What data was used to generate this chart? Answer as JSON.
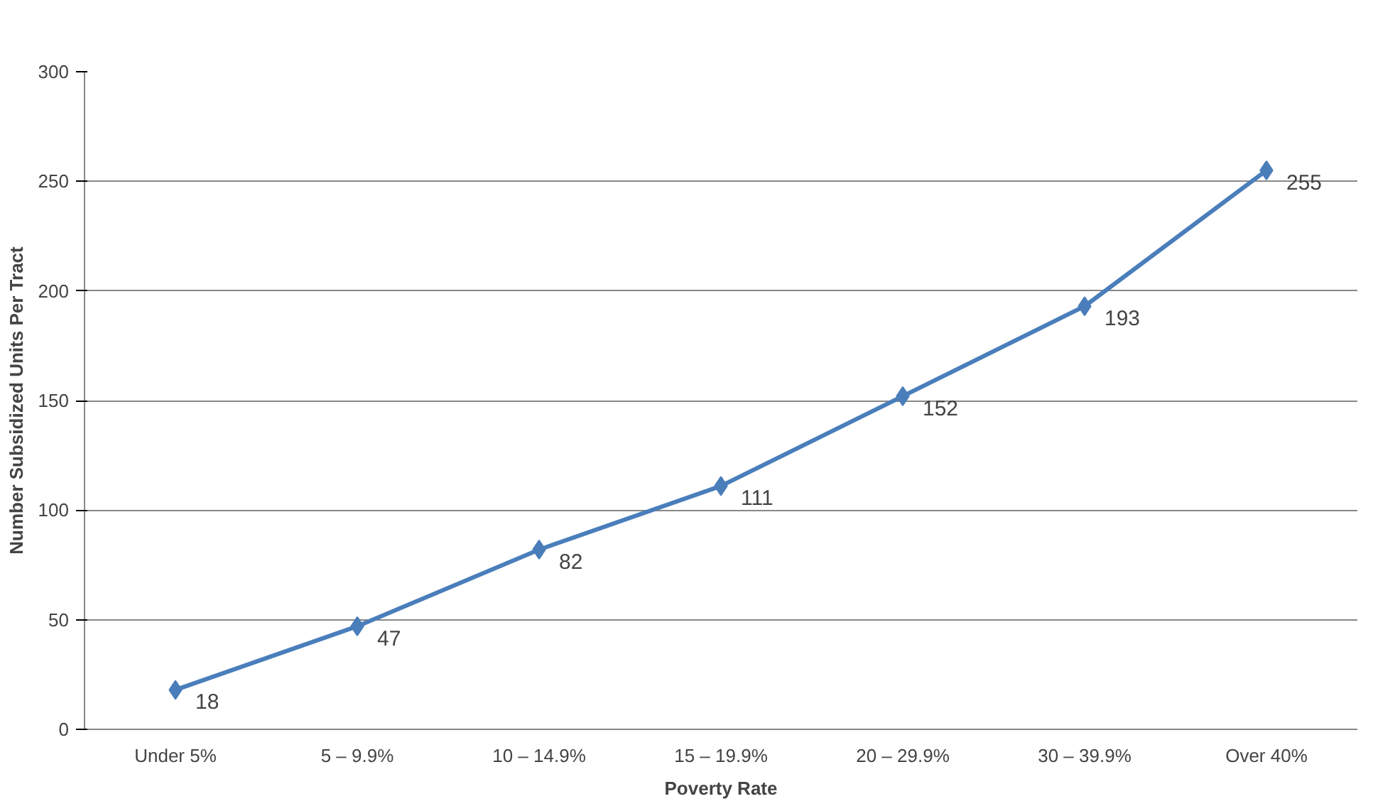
{
  "chart_data": {
    "type": "line",
    "xlabel": "Poverty Rate",
    "ylabel": "Number Subsidized Units Per Tract",
    "categories": [
      "Under 5%",
      "5 – 9.9%",
      "10 – 14.9%",
      "15 – 19.9%",
      "20 – 29.9%",
      "30 – 39.9%",
      "Over 40%"
    ],
    "series": [
      {
        "color": "#4a7ebb",
        "values": [
          18,
          47,
          82,
          111,
          152,
          193,
          255
        ]
      }
    ],
    "ylim": [
      0,
      300
    ],
    "yticks": [
      0,
      50,
      100,
      150,
      200,
      250,
      300
    ],
    "grid": "y",
    "marker": "diamond",
    "line_style": "solid",
    "data_labels": true
  }
}
